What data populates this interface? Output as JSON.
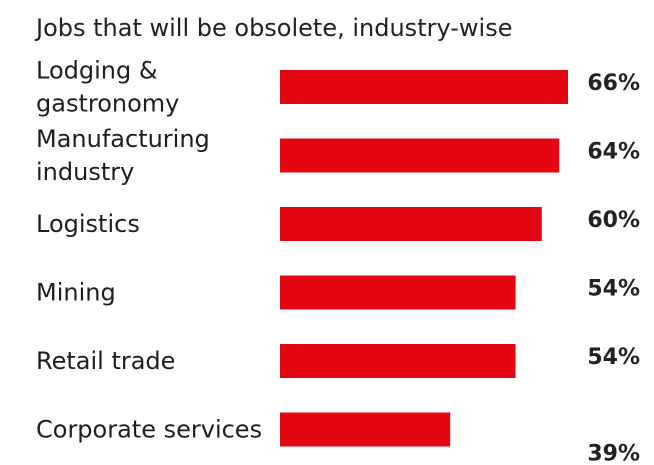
{
  "chart_data": {
    "type": "bar",
    "orientation": "horizontal",
    "title": "Jobs that will be obsolete, industry-wise",
    "categories": [
      [
        "Lodging &",
        "gastronomy"
      ],
      [
        "Manufacturing",
        "industry"
      ],
      [
        "Logistics"
      ],
      [
        "Mining"
      ],
      [
        "Retail trade"
      ],
      [
        "Corporate services"
      ]
    ],
    "values": [
      66,
      64,
      60,
      54,
      54,
      39
    ],
    "value_labels": [
      "66%",
      "64%",
      "60%",
      "54%",
      "54%",
      "39%"
    ],
    "unit": "%",
    "xlim": [
      0,
      66
    ],
    "grid": false,
    "legend": "none",
    "bar_color": "#e30613"
  }
}
